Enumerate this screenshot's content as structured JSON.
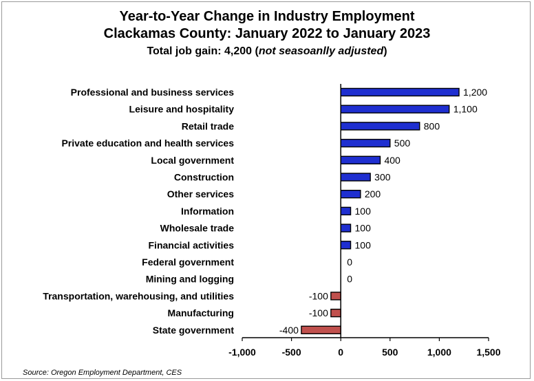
{
  "chart_data": {
    "type": "bar",
    "orientation": "horizontal",
    "title": "Year-to-Year Change in Industry Employment",
    "subtitle": "Clackamas County: January 2022 to January 2023",
    "subtitle2_prefix": "Total job gain: 4,200 (",
    "subtitle2_italic": "not seasoanlly adjusted",
    "subtitle2_suffix": ")",
    "categories": [
      "Professional and business services",
      "Leisure and hospitality",
      "Retail trade",
      "Private education and health services",
      "Local government",
      "Construction",
      "Other services",
      "Information",
      "Wholesale trade",
      "Financial activities",
      "Federal government",
      "Mining and logging",
      "Transportation, warehousing, and utilities",
      "Manufacturing",
      "State government"
    ],
    "values": [
      1200,
      1100,
      800,
      500,
      400,
      300,
      200,
      100,
      100,
      100,
      0,
      0,
      -100,
      -100,
      -400
    ],
    "value_labels": [
      "1,200",
      "1,100",
      "800",
      "500",
      "400",
      "300",
      "200",
      "100",
      "100",
      "100",
      "0",
      "0",
      "-100",
      "-100",
      "-400"
    ],
    "xlim": [
      -1000,
      1500
    ],
    "x_ticks": [
      -1000,
      -500,
      0,
      500,
      1000,
      1500
    ],
    "x_tick_labels": [
      "-1,000",
      "-500",
      "0",
      "500",
      "1,000",
      "1,500"
    ],
    "xlabel": "",
    "ylabel": "",
    "grid": false,
    "colors": {
      "positive": "#1f2fd0",
      "negative": "#c0504d",
      "outline": "#000000"
    },
    "source": "Source: Oregon Employment Department, CES"
  }
}
